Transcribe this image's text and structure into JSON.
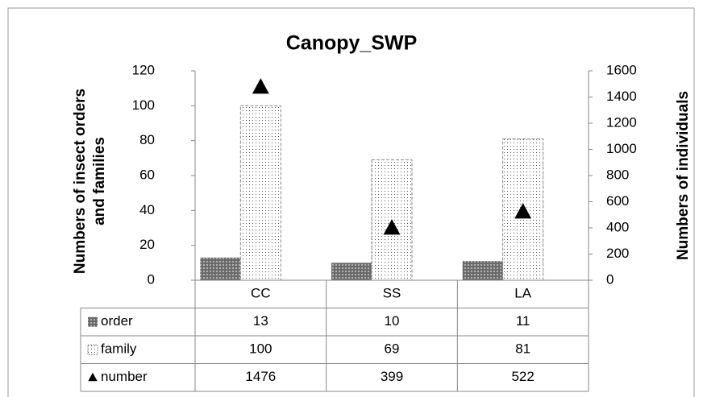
{
  "chart_data": {
    "type": "bar",
    "title": "Canopy_SWP",
    "y_label": [
      "Numbers of insect orders",
      "and families"
    ],
    "y2_label": "Numbers of individuals",
    "categories": [
      "CC",
      "SS",
      "LA"
    ],
    "series": [
      {
        "name": "order",
        "color": "#6a6a6a",
        "values": [
          13,
          10,
          11
        ]
      },
      {
        "name": "family",
        "color": "#ffffff",
        "values": [
          100,
          69,
          81
        ]
      },
      {
        "name": "number",
        "color": "#000000",
        "type": "scatter",
        "axis": "y2",
        "values": [
          1476,
          399,
          522
        ]
      }
    ],
    "ylim": [
      0,
      120
    ],
    "yticks": [
      0,
      20,
      40,
      60,
      80,
      100,
      120
    ],
    "y2lim": [
      0,
      1600
    ],
    "y2ticks": [
      0,
      200,
      400,
      600,
      800,
      1000,
      1200,
      1400,
      1600
    ],
    "data_table": true
  }
}
